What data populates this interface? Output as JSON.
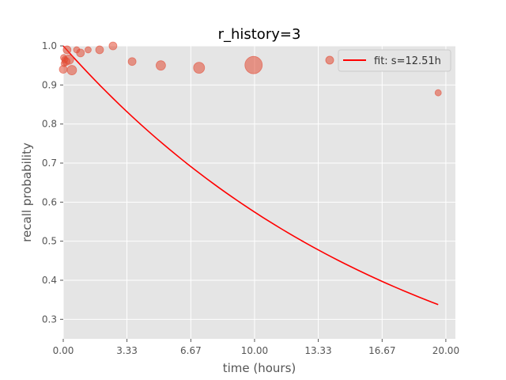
{
  "chart_data": {
    "type": "scatter",
    "title": "r_history=3",
    "xlabel": "time (hours)",
    "ylabel": "recall probability",
    "xlim": [
      0,
      20.5
    ],
    "ylim": [
      0.25,
      1.0
    ],
    "xticks": [
      0,
      3.33,
      6.67,
      10,
      13.33,
      16.67,
      20
    ],
    "xtick_labels": [
      "0.00",
      "3.33",
      "6.67",
      "10.00",
      "13.33",
      "16.67",
      "20.00"
    ],
    "yticks": [
      0.3,
      0.4,
      0.5,
      0.6,
      0.7,
      0.8,
      0.9,
      1.0
    ],
    "ytick_labels": [
      "0.3",
      "0.4",
      "0.5",
      "0.6",
      "0.7",
      "0.8",
      "0.9",
      "1.0"
    ],
    "grid": true,
    "legend_position": "upper-right",
    "colors": {
      "background": "#e5e5e5",
      "grid": "#ffffff",
      "points": "#e24a33",
      "fit": "#ff0000"
    },
    "series": [
      {
        "kind": "points",
        "points": [
          {
            "x": 0.0,
            "y": 0.94,
            "size": 5
          },
          {
            "x": 0.02,
            "y": 0.97,
            "size": 4
          },
          {
            "x": 0.05,
            "y": 0.955,
            "size": 4
          },
          {
            "x": 0.08,
            "y": 0.965,
            "size": 4
          },
          {
            "x": 0.15,
            "y": 0.96,
            "size": 5
          },
          {
            "x": 0.2,
            "y": 0.99,
            "size": 5
          },
          {
            "x": 0.3,
            "y": 0.965,
            "size": 6
          },
          {
            "x": 0.45,
            "y": 0.938,
            "size": 6
          },
          {
            "x": 0.7,
            "y": 0.99,
            "size": 4
          },
          {
            "x": 0.9,
            "y": 0.982,
            "size": 5
          },
          {
            "x": 1.3,
            "y": 0.99,
            "size": 4
          },
          {
            "x": 1.9,
            "y": 0.99,
            "size": 5
          },
          {
            "x": 2.6,
            "y": 1.0,
            "size": 5
          },
          {
            "x": 3.6,
            "y": 0.96,
            "size": 5
          },
          {
            "x": 5.1,
            "y": 0.95,
            "size": 6
          },
          {
            "x": 7.1,
            "y": 0.944,
            "size": 7
          },
          {
            "x": 9.95,
            "y": 0.951,
            "size": 11
          },
          {
            "x": 19.6,
            "y": 0.88,
            "size": 4
          }
        ]
      },
      {
        "kind": "line",
        "name": "fit: s=12.51h",
        "half_life_hours": 12.51,
        "x_range": [
          0,
          19.6
        ]
      }
    ]
  }
}
